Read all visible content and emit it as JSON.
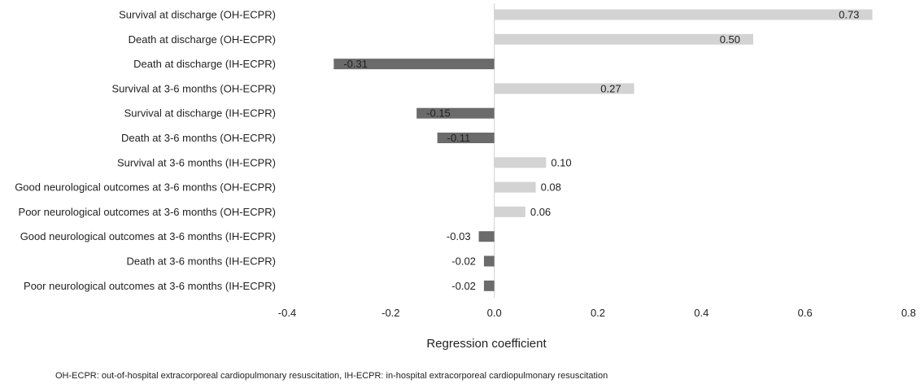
{
  "chart_data": {
    "type": "bar",
    "orientation": "horizontal",
    "categories": [
      "Survival at discharge (OH-ECPR)",
      "Death at discharge (OH-ECPR)",
      "Death at discharge (IH-ECPR)",
      "Survival at 3-6 months (OH-ECPR)",
      "Survival at discharge (IH-ECPR)",
      "Death at 3-6 months (OH-ECPR)",
      "Survival at 3-6 months (IH-ECPR)",
      "Good neurological outcomes at 3-6 months (OH-ECPR)",
      "Poor neurological outcomes at 3-6 months (OH-ECPR)",
      "Good neurological outcomes at 3-6 months (IH-ECPR)",
      "Death at 3-6 months (IH-ECPR)",
      "Poor neurological outcomes at 3-6 months (IH-ECPR)"
    ],
    "values": [
      0.73,
      0.5,
      -0.31,
      0.27,
      -0.15,
      -0.11,
      0.1,
      0.08,
      0.06,
      -0.03,
      -0.02,
      -0.02
    ],
    "data_labels": [
      "0.73",
      "0.50",
      "-0.31",
      "0.27",
      "-0.15",
      "-0.11",
      "0.10",
      "0.08",
      "0.06",
      "-0.03",
      "-0.02",
      "-0.02"
    ],
    "xlabel": "Regression coefficient",
    "xlim": [
      -0.4,
      0.8
    ],
    "xticks": [
      "-0.4",
      "-0.2",
      "0.0",
      "0.2",
      "0.4",
      "0.6",
      "0.8"
    ],
    "grid": false,
    "colors": {
      "positive": "#d3d3d3",
      "negative": "#6b6b6b"
    }
  },
  "footnote": "OH-ECPR: out-of-hospital extracorporeal cardiopulmonary resuscitation, IH-ECPR: in-hospital extracorporeal cardiopulmonary resuscitation"
}
